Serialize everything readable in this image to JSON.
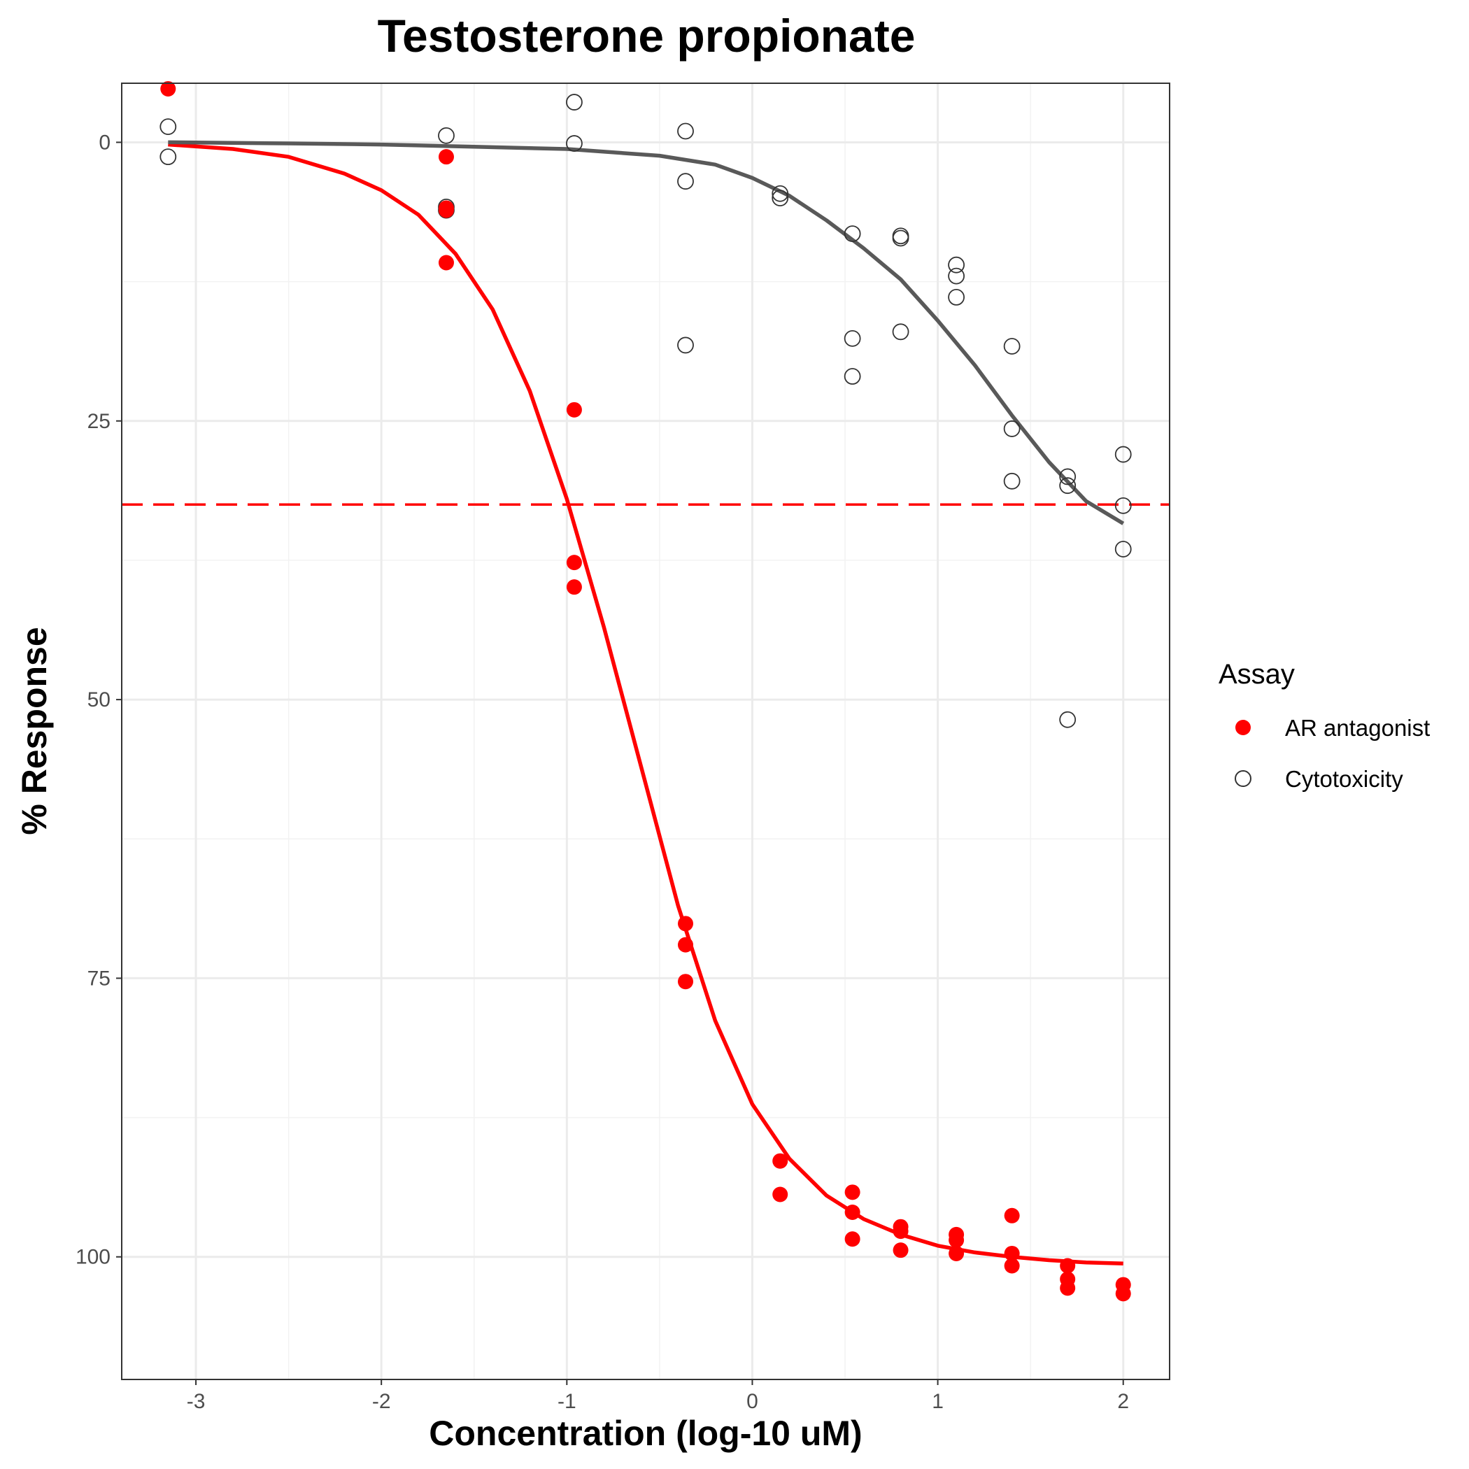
{
  "chart_data": {
    "type": "scatter",
    "title": "Testosterone propionate",
    "xlabel": "Concentration (log-10 uM)",
    "ylabel": "% Response",
    "xlim": [
      -3.4,
      2.25
    ],
    "ylim": [
      -5.3,
      111
    ],
    "y_reversed": true,
    "x_ticks": [
      -3,
      -2,
      -1,
      0,
      1,
      2
    ],
    "x_tick_labels": [
      "-3",
      "-2",
      "-1",
      "0",
      "1",
      "2"
    ],
    "y_ticks": [
      0,
      25,
      50,
      75,
      100
    ],
    "y_tick_labels": [
      "0",
      "25",
      "50",
      "75",
      "100"
    ],
    "grid": true,
    "legend": {
      "title": "Assay",
      "position": "right",
      "entries": [
        {
          "label": "AR antagonist",
          "marker": "filled-circle",
          "color": "#ff0000"
        },
        {
          "label": "Cytotoxicity",
          "marker": "open-circle",
          "color": "#4d4d4d"
        }
      ]
    },
    "threshold_line": {
      "y": 32.5,
      "color": "#ff0000",
      "style": "dashed"
    },
    "series": [
      {
        "name": "AR antagonist",
        "color": "#ff0000",
        "marker": "filled",
        "points": [
          [
            -3.15,
            -4.8
          ],
          [
            -1.65,
            1.3
          ],
          [
            -1.65,
            5.9
          ],
          [
            -1.65,
            6.1
          ],
          [
            -1.65,
            10.8
          ],
          [
            -0.96,
            24.0
          ],
          [
            -0.96,
            37.7
          ],
          [
            -0.96,
            39.9
          ],
          [
            -0.36,
            70.1
          ],
          [
            -0.36,
            72.0
          ],
          [
            -0.36,
            75.3
          ],
          [
            0.15,
            91.4
          ],
          [
            0.15,
            94.4
          ],
          [
            0.54,
            94.2
          ],
          [
            0.54,
            96.0
          ],
          [
            0.54,
            98.4
          ],
          [
            0.8,
            97.3
          ],
          [
            0.8,
            97.7
          ],
          [
            0.8,
            99.4
          ],
          [
            1.1,
            98.0
          ],
          [
            1.1,
            98.5
          ],
          [
            1.1,
            99.7
          ],
          [
            1.4,
            96.3
          ],
          [
            1.4,
            99.7
          ],
          [
            1.4,
            100.8
          ],
          [
            1.7,
            100.8
          ],
          [
            1.7,
            102.0
          ],
          [
            1.7,
            102.8
          ],
          [
            2.0,
            102.5
          ],
          [
            2.0,
            103.3
          ]
        ],
        "fit": [
          [
            -3.15,
            0.2
          ],
          [
            -2.8,
            0.6
          ],
          [
            -2.5,
            1.3
          ],
          [
            -2.2,
            2.8
          ],
          [
            -2.0,
            4.3
          ],
          [
            -1.8,
            6.5
          ],
          [
            -1.6,
            10.0
          ],
          [
            -1.4,
            15.0
          ],
          [
            -1.2,
            22.3
          ],
          [
            -1.0,
            32.0
          ],
          [
            -0.8,
            43.5
          ],
          [
            -0.6,
            56.0
          ],
          [
            -0.4,
            68.5
          ],
          [
            -0.2,
            78.8
          ],
          [
            0.0,
            86.3
          ],
          [
            0.2,
            91.2
          ],
          [
            0.4,
            94.5
          ],
          [
            0.6,
            96.6
          ],
          [
            0.8,
            98.0
          ],
          [
            1.0,
            99.0
          ],
          [
            1.2,
            99.6
          ],
          [
            1.4,
            100.0
          ],
          [
            1.6,
            100.3
          ],
          [
            1.8,
            100.5
          ],
          [
            2.0,
            100.6
          ]
        ]
      },
      {
        "name": "Cytotoxicity",
        "color": "#4d4d4d",
        "marker": "open",
        "points": [
          [
            -3.15,
            -1.4
          ],
          [
            -3.15,
            1.3
          ],
          [
            -1.65,
            -0.6
          ],
          [
            -1.65,
            5.8
          ],
          [
            -1.65,
            6.1
          ],
          [
            -0.96,
            -3.6
          ],
          [
            -0.96,
            0.1
          ],
          [
            -0.36,
            -1.0
          ],
          [
            -0.36,
            3.5
          ],
          [
            -0.36,
            18.2
          ],
          [
            0.15,
            4.6
          ],
          [
            0.15,
            5.0
          ],
          [
            0.54,
            8.2
          ],
          [
            0.54,
            17.6
          ],
          [
            0.54,
            21.0
          ],
          [
            0.8,
            8.4
          ],
          [
            0.8,
            8.6
          ],
          [
            0.8,
            17.0
          ],
          [
            1.1,
            11.0
          ],
          [
            1.1,
            12.0
          ],
          [
            1.1,
            13.9
          ],
          [
            1.4,
            18.3
          ],
          [
            1.4,
            25.7
          ],
          [
            1.4,
            30.4
          ],
          [
            1.7,
            30.0
          ],
          [
            1.7,
            30.8
          ],
          [
            1.7,
            51.8
          ],
          [
            2.0,
            28.0
          ],
          [
            2.0,
            32.6
          ],
          [
            2.0,
            36.5
          ]
        ],
        "fit": [
          [
            -3.15,
            0.0
          ],
          [
            -2.5,
            0.1
          ],
          [
            -2.0,
            0.2
          ],
          [
            -1.5,
            0.4
          ],
          [
            -1.0,
            0.6
          ],
          [
            -0.5,
            1.2
          ],
          [
            -0.2,
            2.0
          ],
          [
            0.0,
            3.2
          ],
          [
            0.2,
            4.8
          ],
          [
            0.4,
            7.0
          ],
          [
            0.6,
            9.5
          ],
          [
            0.8,
            12.3
          ],
          [
            1.0,
            16.0
          ],
          [
            1.2,
            20.0
          ],
          [
            1.4,
            24.5
          ],
          [
            1.6,
            28.7
          ],
          [
            1.8,
            32.2
          ],
          [
            2.0,
            34.2
          ]
        ]
      }
    ]
  }
}
